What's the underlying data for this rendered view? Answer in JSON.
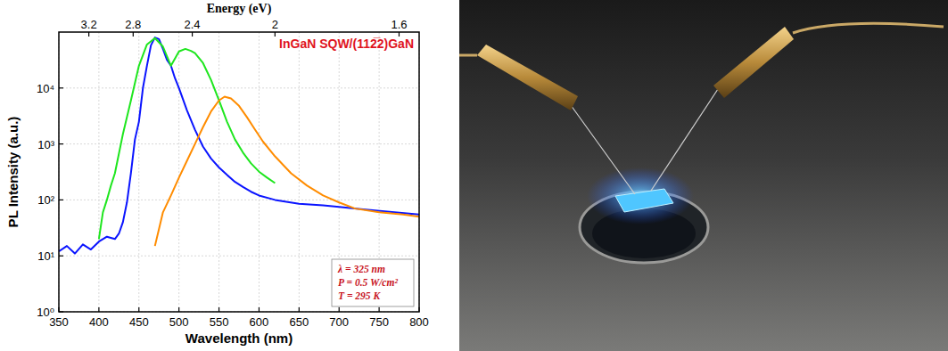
{
  "chart_data": {
    "type": "line",
    "title": "InGaN SQW/(112̅2)GaN",
    "x_title": "Wavelength (nm)",
    "y_title": "PL Intensity (a.u.)",
    "x2_title": "Energy (eV)",
    "xlim": [
      350,
      800
    ],
    "xticks": [
      350,
      400,
      450,
      500,
      550,
      600,
      650,
      700,
      750,
      800
    ],
    "x2ticks": [
      3.2,
      2.8,
      2.4,
      2,
      1.6
    ],
    "ylim": [
      1,
      100000
    ],
    "yticks": [
      {
        "value": 1,
        "label": "10⁰"
      },
      {
        "value": 10,
        "label": "10¹"
      },
      {
        "value": 100,
        "label": "10²"
      },
      {
        "value": 1000,
        "label": "10³"
      },
      {
        "value": 10000,
        "label": "10⁴"
      }
    ],
    "log": "y",
    "grid": true,
    "annotations": [
      "λ = 325 nm",
      "P = 0.5 W/cm²",
      "T = 295 K"
    ],
    "series": [
      {
        "color": "#0a14ff",
        "x": [
          350,
          360,
          370,
          380,
          390,
          400,
          410,
          420,
          425,
          430,
          435,
          440,
          445,
          450,
          455,
          460,
          465,
          470,
          475,
          480,
          485,
          490,
          495,
          500,
          510,
          520,
          530,
          540,
          550,
          560,
          570,
          580,
          590,
          600,
          620,
          650,
          680,
          700,
          730,
          760,
          800
        ],
        "values": [
          12,
          15,
          11,
          16,
          13,
          18,
          22,
          20,
          25,
          40,
          90,
          300,
          1200,
          2500,
          10000,
          25000,
          58000,
          80000,
          75000,
          50000,
          32000,
          25000,
          15000,
          10000,
          4000,
          1800,
          900,
          550,
          380,
          280,
          210,
          170,
          140,
          120,
          100,
          85,
          80,
          75,
          68,
          62,
          55
        ]
      },
      {
        "color": "#1ee61e",
        "x": [
          400,
          405,
          410,
          415,
          420,
          430,
          440,
          450,
          460,
          470,
          480,
          490,
          500,
          508,
          515,
          520,
          530,
          540,
          550,
          560,
          570,
          580,
          590,
          600,
          610,
          620
        ],
        "values": [
          20,
          60,
          100,
          180,
          300,
          1500,
          6000,
          25000,
          60000,
          78000,
          55000,
          25000,
          45000,
          50000,
          46000,
          42000,
          28000,
          14000,
          6000,
          2500,
          1200,
          700,
          450,
          320,
          250,
          200
        ]
      },
      {
        "color": "#ff8c00",
        "x": [
          470,
          475,
          480,
          490,
          500,
          510,
          520,
          530,
          540,
          550,
          557,
          565,
          575,
          585,
          595,
          605,
          620,
          640,
          660,
          680,
          700,
          720,
          750,
          780,
          800
        ],
        "values": [
          15,
          30,
          60,
          120,
          250,
          500,
          1000,
          2000,
          3800,
          6000,
          7000,
          6500,
          4800,
          3000,
          1800,
          1100,
          600,
          300,
          180,
          120,
          90,
          70,
          60,
          55,
          50
        ]
      }
    ]
  }
}
